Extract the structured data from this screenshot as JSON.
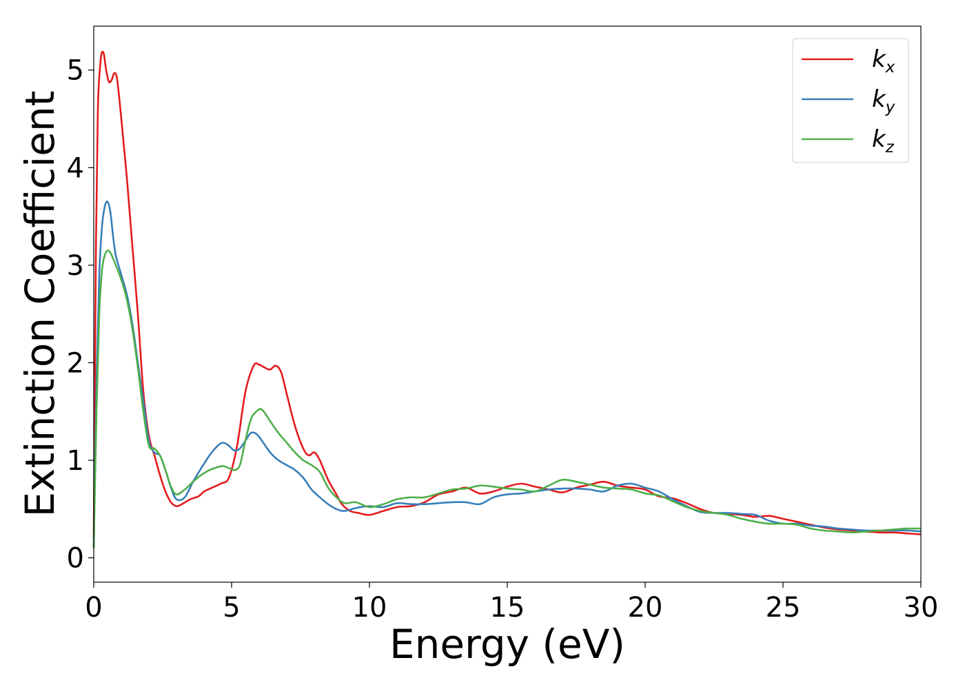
{
  "chart_data": {
    "type": "line",
    "xlabel": "Energy (eV)",
    "ylabel": "Extinction Coefficient",
    "xlim": [
      0,
      30
    ],
    "ylim": [
      -0.25,
      5.45
    ],
    "xticks": [
      0,
      5,
      10,
      15,
      20,
      25,
      30
    ],
    "yticks": [
      0,
      1,
      2,
      3,
      4,
      5
    ],
    "grid": false,
    "legend_position": "top-right",
    "series": [
      {
        "name": "k",
        "sub": "x",
        "color": "#e41a1c",
        "x": [
          0,
          0.08,
          0.15,
          0.25,
          0.35,
          0.45,
          0.55,
          0.65,
          0.75,
          0.85,
          1.0,
          1.2,
          1.4,
          1.6,
          1.8,
          2.0,
          2.2,
          2.4,
          2.6,
          2.8,
          3.0,
          3.2,
          3.5,
          3.8,
          4.0,
          4.3,
          4.6,
          4.9,
          5.2,
          5.5,
          5.8,
          6.0,
          6.2,
          6.4,
          6.6,
          6.8,
          7.0,
          7.3,
          7.6,
          7.8,
          8.0,
          8.2,
          8.5,
          8.8,
          9.0,
          9.3,
          9.6,
          10.0,
          10.5,
          11.0,
          11.5,
          12.0,
          12.5,
          13.0,
          13.5,
          14.0,
          14.5,
          15.0,
          15.5,
          16.0,
          16.5,
          17.0,
          17.5,
          18.0,
          18.5,
          19.0,
          19.5,
          20.0,
          20.5,
          21.0,
          21.5,
          22.0,
          22.5,
          23.0,
          23.5,
          24.0,
          24.5,
          25.0,
          25.5,
          26.0,
          26.5,
          27.0,
          27.5,
          28.0,
          28.5,
          29.0,
          29.5,
          30.0
        ],
        "y": [
          0.2,
          3.2,
          4.6,
          5.1,
          5.18,
          5.0,
          4.88,
          4.9,
          4.97,
          4.9,
          4.5,
          3.9,
          3.2,
          2.5,
          1.7,
          1.25,
          1.05,
          0.85,
          0.68,
          0.57,
          0.53,
          0.55,
          0.6,
          0.63,
          0.68,
          0.72,
          0.76,
          0.82,
          1.15,
          1.7,
          1.97,
          1.98,
          1.95,
          1.93,
          1.97,
          1.9,
          1.68,
          1.35,
          1.12,
          1.05,
          1.08,
          1.0,
          0.8,
          0.65,
          0.55,
          0.48,
          0.46,
          0.44,
          0.48,
          0.52,
          0.53,
          0.57,
          0.65,
          0.68,
          0.72,
          0.66,
          0.68,
          0.73,
          0.76,
          0.73,
          0.7,
          0.67,
          0.72,
          0.75,
          0.78,
          0.74,
          0.72,
          0.7,
          0.63,
          0.61,
          0.56,
          0.5,
          0.46,
          0.45,
          0.44,
          0.42,
          0.43,
          0.4,
          0.37,
          0.34,
          0.31,
          0.29,
          0.28,
          0.27,
          0.26,
          0.26,
          0.25,
          0.24
        ]
      },
      {
        "name": "k",
        "sub": "y",
        "color": "#377eb8",
        "x": [
          0,
          0.1,
          0.2,
          0.3,
          0.4,
          0.5,
          0.6,
          0.7,
          0.8,
          1.0,
          1.2,
          1.4,
          1.6,
          1.8,
          2.0,
          2.2,
          2.4,
          2.6,
          2.8,
          3.0,
          3.3,
          3.6,
          3.9,
          4.2,
          4.5,
          4.7,
          4.9,
          5.1,
          5.3,
          5.5,
          5.7,
          5.9,
          6.1,
          6.4,
          6.7,
          7.0,
          7.3,
          7.6,
          7.9,
          8.2,
          8.5,
          8.8,
          9.1,
          9.5,
          10.0,
          10.5,
          11.0,
          11.5,
          12.0,
          12.5,
          13.0,
          13.5,
          14.0,
          14.5,
          15.0,
          15.5,
          16.0,
          16.5,
          17.0,
          17.5,
          18.0,
          18.5,
          19.0,
          19.5,
          20.0,
          20.5,
          21.0,
          21.5,
          22.0,
          22.5,
          23.0,
          23.5,
          24.0,
          24.5,
          25.0,
          25.5,
          26.0,
          26.5,
          27.0,
          27.5,
          28.0,
          28.5,
          29.0,
          29.5,
          30.0
        ],
        "y": [
          0.1,
          1.8,
          2.9,
          3.4,
          3.6,
          3.65,
          3.55,
          3.3,
          3.1,
          2.9,
          2.7,
          2.4,
          2.0,
          1.6,
          1.2,
          1.08,
          1.05,
          0.9,
          0.72,
          0.6,
          0.62,
          0.78,
          0.92,
          1.05,
          1.15,
          1.18,
          1.15,
          1.1,
          1.12,
          1.2,
          1.28,
          1.27,
          1.2,
          1.08,
          1.0,
          0.95,
          0.9,
          0.82,
          0.7,
          0.62,
          0.55,
          0.5,
          0.48,
          0.51,
          0.53,
          0.52,
          0.56,
          0.55,
          0.55,
          0.56,
          0.57,
          0.57,
          0.55,
          0.62,
          0.65,
          0.66,
          0.68,
          0.7,
          0.71,
          0.71,
          0.7,
          0.68,
          0.74,
          0.76,
          0.72,
          0.68,
          0.6,
          0.53,
          0.47,
          0.46,
          0.46,
          0.45,
          0.44,
          0.38,
          0.35,
          0.35,
          0.33,
          0.32,
          0.3,
          0.29,
          0.28,
          0.28,
          0.28,
          0.28,
          0.27
        ]
      },
      {
        "name": "k",
        "sub": "z",
        "color": "#4daf4a",
        "x": [
          0,
          0.1,
          0.2,
          0.3,
          0.4,
          0.5,
          0.6,
          0.7,
          0.8,
          1.0,
          1.2,
          1.4,
          1.6,
          1.8,
          2.0,
          2.2,
          2.4,
          2.6,
          2.8,
          3.0,
          3.3,
          3.6,
          3.9,
          4.2,
          4.5,
          4.7,
          4.9,
          5.1,
          5.3,
          5.5,
          5.7,
          5.9,
          6.1,
          6.4,
          6.7,
          7.0,
          7.3,
          7.6,
          7.9,
          8.2,
          8.5,
          8.8,
          9.1,
          9.5,
          10.0,
          10.5,
          11.0,
          11.5,
          12.0,
          12.5,
          13.0,
          13.5,
          14.0,
          14.5,
          15.0,
          15.5,
          16.0,
          16.5,
          17.0,
          17.5,
          18.0,
          18.5,
          19.0,
          19.5,
          20.0,
          20.5,
          21.0,
          21.5,
          22.0,
          22.5,
          23.0,
          23.5,
          24.0,
          24.5,
          25.0,
          25.5,
          26.0,
          26.5,
          27.0,
          27.5,
          28.0,
          28.5,
          29.0,
          29.5,
          30.0
        ],
        "y": [
          0.1,
          1.5,
          2.5,
          2.95,
          3.1,
          3.15,
          3.13,
          3.07,
          3.0,
          2.85,
          2.65,
          2.35,
          1.95,
          1.5,
          1.15,
          1.12,
          1.05,
          0.9,
          0.73,
          0.65,
          0.7,
          0.78,
          0.85,
          0.9,
          0.93,
          0.94,
          0.92,
          0.9,
          0.95,
          1.2,
          1.42,
          1.5,
          1.52,
          1.4,
          1.28,
          1.18,
          1.08,
          1.0,
          0.95,
          0.88,
          0.72,
          0.62,
          0.56,
          0.57,
          0.52,
          0.55,
          0.6,
          0.62,
          0.62,
          0.66,
          0.7,
          0.71,
          0.74,
          0.73,
          0.71,
          0.7,
          0.68,
          0.74,
          0.8,
          0.78,
          0.75,
          0.72,
          0.71,
          0.7,
          0.66,
          0.64,
          0.58,
          0.52,
          0.48,
          0.46,
          0.44,
          0.4,
          0.37,
          0.35,
          0.35,
          0.34,
          0.3,
          0.28,
          0.27,
          0.26,
          0.27,
          0.28,
          0.29,
          0.3,
          0.3
        ]
      }
    ]
  }
}
